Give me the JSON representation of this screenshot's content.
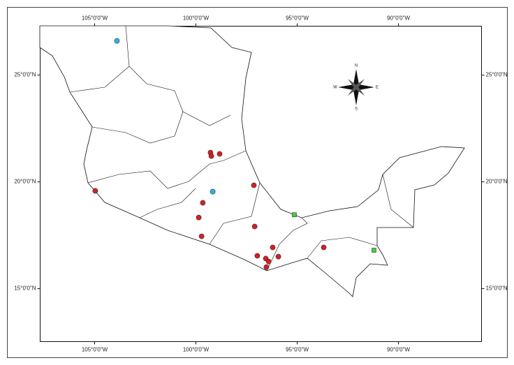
{
  "chart_data": {
    "type": "map",
    "xlim": [
      -107.69,
      -85.9
    ],
    "ylim": [
      12.52,
      27.29
    ],
    "xticks": [
      {
        "value": -105,
        "label": "105°0'0\"W"
      },
      {
        "value": -100,
        "label": "100°0'0\"W"
      },
      {
        "value": -95,
        "label": "95°0'0\"W"
      },
      {
        "value": -90,
        "label": "90°0'0\"W"
      }
    ],
    "yticks": [
      {
        "value": 25,
        "label": "25°0'0\"N"
      },
      {
        "value": 20,
        "label": "20°0'0\"N"
      },
      {
        "value": 15,
        "label": "15°0'0\"N"
      }
    ],
    "compass": {
      "n": "N",
      "s": "S",
      "e": "E",
      "w": "W"
    },
    "series": [
      {
        "color": "#d42020",
        "marker": "circle",
        "x": [
          -104.97,
          -99.28,
          -99.24,
          -98.83,
          -99.66,
          -99.86,
          -99.72,
          -97.14,
          -97.1,
          -96.97,
          -96.55,
          -96.41,
          -96.21,
          -95.93,
          -96.52,
          -93.69
        ],
        "values": [
          19.58,
          21.37,
          21.21,
          21.31,
          19.02,
          18.33,
          17.45,
          19.84,
          17.91,
          16.54,
          16.41,
          16.27,
          16.93,
          16.5,
          16.01,
          16.93
        ]
      },
      {
        "color": "#2ab4e8",
        "marker": "circle",
        "x": [
          -103.9,
          -99.17
        ],
        "values": [
          26.6,
          19.54
        ]
      },
      {
        "color": "#3ad43a",
        "marker": "square",
        "x": [
          -95.14,
          -91.21
        ],
        "values": [
          18.46,
          16.8
        ]
      }
    ]
  }
}
